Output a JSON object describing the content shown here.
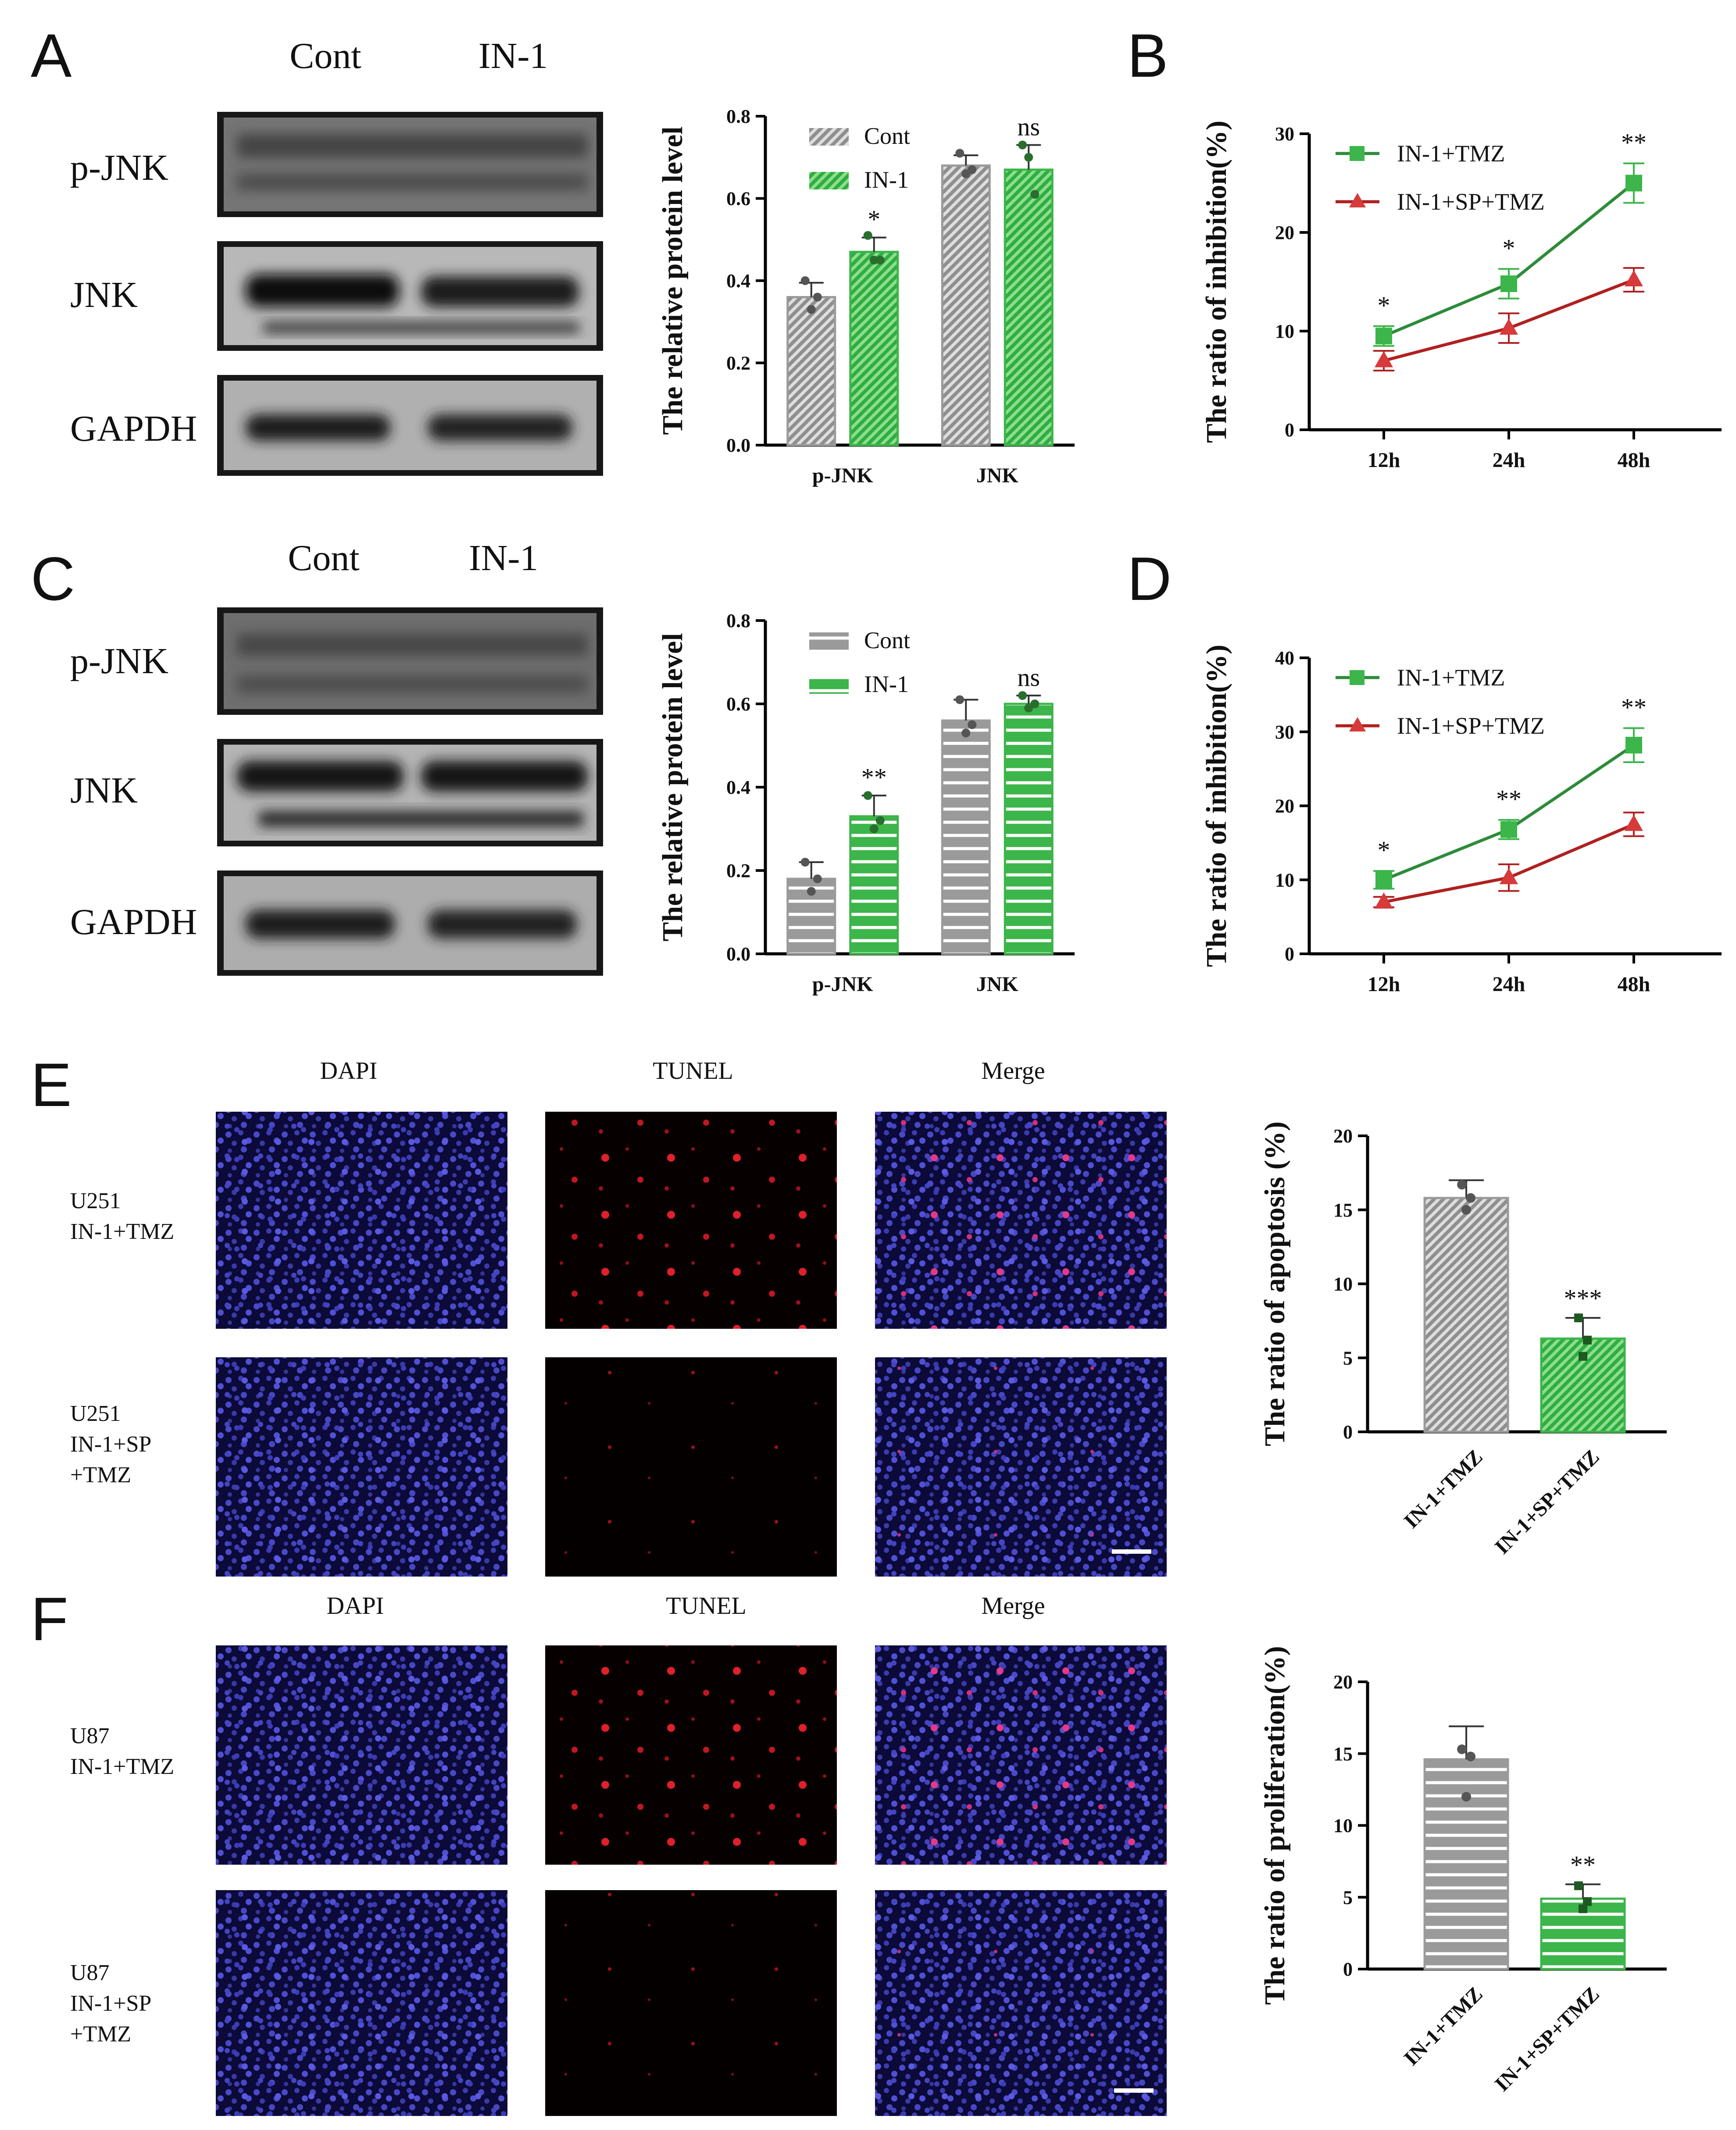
{
  "figure_labels": [
    "A",
    "B",
    "C",
    "D",
    "E",
    "F"
  ],
  "blots": {
    "A": {
      "lanes": [
        "Cont",
        "IN-1"
      ],
      "rows": [
        "p-JNK",
        "JNK",
        "GAPDH"
      ]
    },
    "C": {
      "lanes": [
        "Cont",
        "IN-1"
      ],
      "rows": [
        "p-JNK",
        "JNK",
        "GAPDH"
      ]
    }
  },
  "panelE": {
    "columns": [
      "DAPI",
      "TUNEL",
      "Merge"
    ],
    "rows": [
      [
        "U251",
        "IN-1+TMZ"
      ],
      [
        "U251",
        "IN-1+SP",
        "+TMZ"
      ]
    ]
  },
  "panelF": {
    "columns": [
      "DAPI",
      "TUNEL",
      "Merge"
    ],
    "rows": [
      [
        "U87",
        "IN-1+TMZ"
      ],
      [
        "U87",
        "IN-1+SP",
        "+TMZ"
      ]
    ]
  },
  "colors": {
    "gray": "#9a9a9a",
    "green": "#3cb54a",
    "darkgreen": "#2e8b3a",
    "red": "#d63a3a",
    "darkred": "#b02020",
    "dot": "#555555"
  },
  "chart_data": [
    {
      "id": "A-bar",
      "type": "bar",
      "categories": [
        "p-JNK",
        "JNK"
      ],
      "series": [
        {
          "name": "Cont",
          "values": [
            0.36,
            0.68
          ],
          "errors": [
            0.035,
            0.025
          ],
          "points": [
            [
              0.4,
              0.33,
              0.36
            ],
            [
              0.71,
              0.66,
              0.67
            ]
          ]
        },
        {
          "name": "IN-1",
          "values": [
            0.47,
            0.67
          ],
          "errors": [
            0.035,
            0.06
          ],
          "points": [
            [
              0.51,
              0.45,
              0.45
            ],
            [
              0.73,
              0.7,
              0.61
            ]
          ]
        }
      ],
      "significance": [
        "*",
        "ns"
      ],
      "ylabel": "The relative protein level",
      "ylim": [
        0,
        0.8
      ],
      "yticks": [
        "0.0",
        "0.2",
        "0.4",
        "0.6",
        "0.8"
      ],
      "pattern": "diagonal"
    },
    {
      "id": "C-bar",
      "type": "bar",
      "categories": [
        "p-JNK",
        "JNK"
      ],
      "series": [
        {
          "name": "Cont",
          "values": [
            0.18,
            0.56
          ],
          "errors": [
            0.04,
            0.05
          ],
          "points": [
            [
              0.22,
              0.15,
              0.18
            ],
            [
              0.61,
              0.53,
              0.55
            ]
          ]
        },
        {
          "name": "IN-1",
          "values": [
            0.33,
            0.6
          ],
          "errors": [
            0.05,
            0.02
          ],
          "points": [
            [
              0.38,
              0.3,
              0.32
            ],
            [
              0.62,
              0.59,
              0.6
            ]
          ]
        }
      ],
      "significance": [
        "**",
        "ns"
      ],
      "ylabel": "The relative protein level",
      "ylim": [
        0,
        0.8
      ],
      "yticks": [
        "0.0",
        "0.2",
        "0.4",
        "0.6",
        "0.8"
      ],
      "pattern": "horizontal"
    },
    {
      "id": "B-line",
      "type": "line",
      "x": [
        "12h",
        "24h",
        "48h"
      ],
      "series": [
        {
          "name": "IN-1+TMZ",
          "values": [
            9.5,
            14.8,
            25.0
          ],
          "errors": [
            1.0,
            1.5,
            2.0
          ]
        },
        {
          "name": "IN-1+SP+TMZ",
          "values": [
            7.0,
            10.3,
            15.2
          ],
          "errors": [
            1.0,
            1.5,
            1.2
          ]
        }
      ],
      "significance": [
        "*",
        "*",
        "**"
      ],
      "ylabel": "The ratio of inhibition(%)",
      "ylim": [
        0,
        30
      ],
      "yticks": [
        "0",
        "10",
        "20",
        "30"
      ]
    },
    {
      "id": "D-line",
      "type": "line",
      "x": [
        "12h",
        "24h",
        "48h"
      ],
      "series": [
        {
          "name": "IN-1+TMZ",
          "values": [
            10.0,
            16.8,
            28.2
          ],
          "errors": [
            1.2,
            1.3,
            2.3
          ]
        },
        {
          "name": "IN-1+SP+TMZ",
          "values": [
            7.0,
            10.3,
            17.5
          ],
          "errors": [
            0.7,
            1.8,
            1.6
          ]
        }
      ],
      "significance": [
        "*",
        "**",
        "**"
      ],
      "ylabel": "The ratio of inhibition(%)",
      "ylim": [
        0,
        40
      ],
      "yticks": [
        "0",
        "10",
        "20",
        "30",
        "40"
      ]
    },
    {
      "id": "E-bar",
      "type": "bar",
      "categories": [
        "IN-1+TMZ",
        "IN-1+SP+TMZ"
      ],
      "values": [
        15.8,
        6.3
      ],
      "errors": [
        1.2,
        1.4
      ],
      "points": [
        [
          16.7,
          15.0,
          15.8
        ],
        [
          7.7,
          5.1,
          6.2
        ]
      ],
      "significance": [
        "",
        "***"
      ],
      "ylabel": "The ratio of apoptosis (%)",
      "ylim": [
        0,
        20
      ],
      "yticks": [
        "0",
        "5",
        "10",
        "15",
        "20"
      ],
      "pattern": "diagonal"
    },
    {
      "id": "F-bar",
      "type": "bar",
      "categories": [
        "IN-1+TMZ",
        "IN-1+SP+TMZ"
      ],
      "values": [
        14.6,
        4.9
      ],
      "errors": [
        2.3,
        1.0
      ],
      "points": [
        [
          15.3,
          12.0,
          14.8
        ],
        [
          5.8,
          4.2,
          4.7
        ]
      ],
      "significance": [
        "",
        "**"
      ],
      "ylabel": "The ratio of proliferation(%)",
      "ylim": [
        0,
        20
      ],
      "yticks": [
        "0",
        "5",
        "10",
        "15",
        "20"
      ],
      "pattern": "horizontal"
    }
  ]
}
